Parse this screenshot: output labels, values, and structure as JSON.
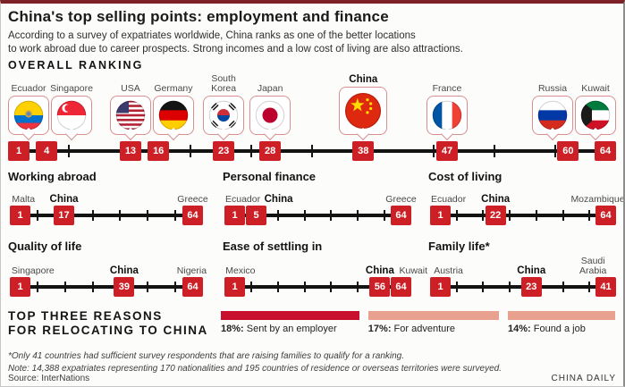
{
  "header": {
    "title": "China's top selling points: employment and finance",
    "subtitle_line1": "According to a survey of expatriates worldwide, China ranks as one of the better locations",
    "subtitle_line2": "to work abroad due to career prospects. Strong incomes and a low cost of living are also attractions."
  },
  "footnotes": {
    "asterisk": "*Only 41 countries had sufficient survey respondents that are raising families to qualify for a ranking.",
    "note": "Note: 14,388 expatriates representing 170 nationalities and 195 countries of residence or overseas territories were surveyed."
  },
  "source": {
    "label": "Source: InterNations",
    "credit": "CHINA DAILY"
  },
  "colors": {
    "rank_box_red": "#cd2026",
    "bar_dark_red": "#c8102e",
    "bar_salmon": "#e8a08f",
    "bubble_border": "#d98f8f",
    "line_black": "#131313",
    "top_border_maroon": "#7e2127"
  },
  "chart_data": [
    {
      "type": "scatter",
      "title": "OVERALL RANKING",
      "xlim": [
        1,
        64
      ],
      "points": [
        {
          "label": "Ecuador",
          "x": 1,
          "flag": "ecuador-flag-icon"
        },
        {
          "label": "Singapore",
          "x": 4,
          "flag": "singapore-flag-icon"
        },
        {
          "label": "USA",
          "x": 13,
          "flag": "usa-flag-icon"
        },
        {
          "label": "Germany",
          "x": 16,
          "flag": "germany-flag-icon"
        },
        {
          "label": "South Korea",
          "x": 23,
          "flag": "south-korea-flag-icon"
        },
        {
          "label": "Japan",
          "x": 28,
          "flag": "japan-flag-icon"
        },
        {
          "label": "China",
          "x": 38,
          "flag": "china-flag-icon",
          "highlight": true
        },
        {
          "label": "France",
          "x": 47,
          "flag": "france-flag-icon"
        },
        {
          "label": "Russia",
          "x": 60,
          "flag": "russia-flag-icon"
        },
        {
          "label": "Kuwait",
          "x": 64,
          "flag": "kuwait-flag-icon"
        }
      ]
    },
    {
      "type": "scatter",
      "title": "Working abroad",
      "xlim": [
        1,
        64
      ],
      "points": [
        {
          "label": "Malta",
          "x": 1
        },
        {
          "label": "China",
          "x": 17,
          "highlight": true
        },
        {
          "label": "Greece",
          "x": 64
        }
      ]
    },
    {
      "type": "scatter",
      "title": "Personal finance",
      "xlim": [
        1,
        64
      ],
      "points": [
        {
          "label": "Ecuador",
          "x": 1
        },
        {
          "label": "China",
          "x": 5,
          "highlight": true
        },
        {
          "label": "Greece",
          "x": 64
        }
      ]
    },
    {
      "type": "scatter",
      "title": "Cost of living",
      "xlim": [
        1,
        64
      ],
      "points": [
        {
          "label": "Ecuador",
          "x": 1
        },
        {
          "label": "China",
          "x": 22,
          "highlight": true
        },
        {
          "label": "Mozambique",
          "x": 64
        }
      ]
    },
    {
      "type": "scatter",
      "title": "Quality of life",
      "xlim": [
        1,
        64
      ],
      "points": [
        {
          "label": "Singapore",
          "x": 1
        },
        {
          "label": "China",
          "x": 39,
          "highlight": true
        },
        {
          "label": "Nigeria",
          "x": 64
        }
      ]
    },
    {
      "type": "scatter",
      "title": "Ease of settling in",
      "xlim": [
        1,
        64
      ],
      "points": [
        {
          "label": "Mexico",
          "x": 1
        },
        {
          "label": "China",
          "x": 56,
          "highlight": true
        },
        {
          "label": "Kuwait",
          "x": 64
        }
      ]
    },
    {
      "type": "scatter",
      "title": "Family life*",
      "xlim": [
        1,
        41
      ],
      "points": [
        {
          "label": "Austria",
          "x": 1
        },
        {
          "label": "China",
          "x": 23,
          "highlight": true
        },
        {
          "label": "Saudi Arabia",
          "x": 41
        }
      ]
    },
    {
      "type": "bar",
      "title": "TOP THREE REASONS FOR RELOCATING TO CHINA",
      "title_line1": "TOP THREE REASONS",
      "title_line2": "FOR RELOCATING TO CHINA",
      "categories": [
        "Sent by an employer",
        "For adventure",
        "Found a job"
      ],
      "values": [
        18,
        17,
        14
      ],
      "value_suffix": "%",
      "bar_colors": [
        "#c8102e",
        "#e8a08f",
        "#e8a08f"
      ]
    }
  ]
}
